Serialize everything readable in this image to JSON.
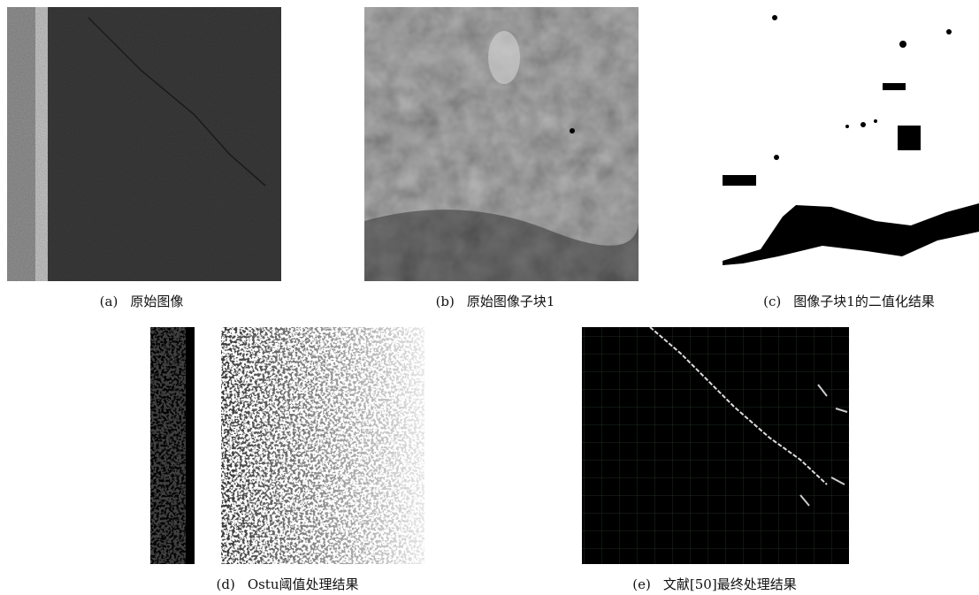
{
  "panels": [
    {
      "label": "(a)",
      "caption": "原始图像"
    },
    {
      "label": "(b)",
      "caption": "原始图像子块1"
    },
    {
      "label": "(c)",
      "caption": "图像子块1的二值化结果"
    },
    {
      "label": "(d)",
      "caption": "Ostu阈值处理结果"
    },
    {
      "label": "(e)",
      "caption": "文献[50]最终处理结果"
    }
  ]
}
